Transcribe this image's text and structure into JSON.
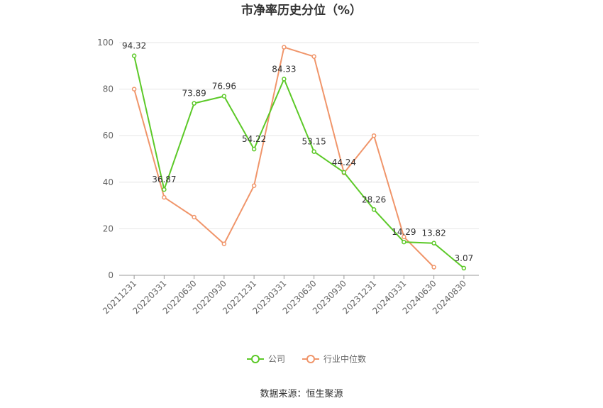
{
  "chart_data": {
    "type": "line",
    "title": "市净率历史分位（%）",
    "xlabel": "",
    "ylabel": "",
    "categories": [
      "20211231",
      "20220331",
      "20220630",
      "20220930",
      "20221231",
      "20230331",
      "20230630",
      "20230930",
      "20231231",
      "20240331",
      "20240630",
      "20240830"
    ],
    "ylim": [
      0,
      100
    ],
    "yticks": [
      0,
      20,
      40,
      60,
      80,
      100
    ],
    "grid": true,
    "legend_position": "bottom",
    "series": [
      {
        "name": "公司",
        "color": "#5cc928",
        "show_labels": true,
        "values": [
          94.32,
          36.87,
          73.89,
          76.96,
          54.22,
          84.33,
          53.15,
          44.24,
          28.26,
          14.29,
          13.82,
          3.07
        ],
        "labels": [
          "94.32",
          "36.87",
          "73.89",
          "76.96",
          "54.22",
          "84.33",
          "53.15",
          "44.24",
          "28.26",
          "14.29",
          "13.82",
          "3.07"
        ]
      },
      {
        "name": "行业中位数",
        "color": "#f0956a",
        "show_labels": false,
        "values": [
          80,
          33.5,
          25,
          13.5,
          38.5,
          98,
          94,
          44,
          60,
          16.5,
          3.5,
          null
        ]
      }
    ]
  },
  "source": "数据来源：恒生聚源"
}
